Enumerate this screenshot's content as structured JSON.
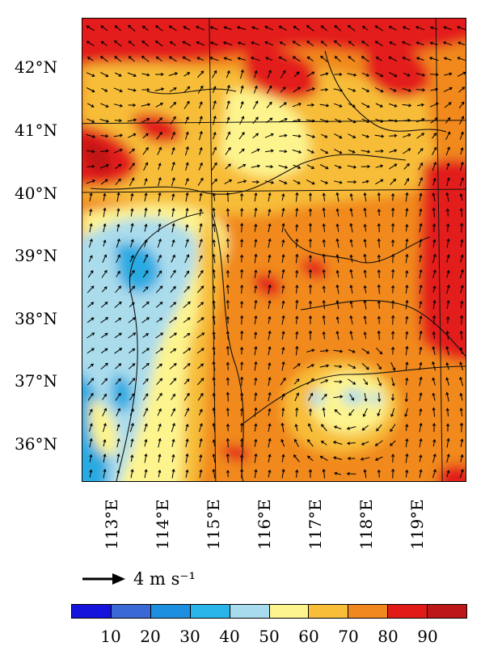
{
  "map": {
    "lat_labels": [
      "42°N",
      "41°N",
      "40°N",
      "39°N",
      "38°N",
      "37°N",
      "36°N"
    ],
    "lon_labels": [
      "113°E",
      "114°E",
      "115°E",
      "116°E",
      "117°E",
      "118°E",
      "119°E"
    ],
    "grid_lat": [
      40.0,
      41.1
    ],
    "grid_lon": [
      114.95,
      119.4
    ],
    "field_palette": [
      "#aadcec",
      "#2aaae2",
      "#fdf48e",
      "#f7bd38",
      "#f1891e",
      "#e31c1a",
      "#bf1717"
    ]
  },
  "vector_legend": {
    "reference_label": "4 m s⁻¹"
  },
  "colorbar": {
    "colors": [
      "#1414dc",
      "#3a68d6",
      "#1d8fe0",
      "#2ab5ea",
      "#a9dbee",
      "#fdf48e",
      "#f8be38",
      "#f1881f",
      "#e21b19",
      "#bd1717"
    ],
    "tick_labels": [
      "10",
      "20",
      "30",
      "40",
      "50",
      "60",
      "70",
      "80",
      "90"
    ]
  }
}
